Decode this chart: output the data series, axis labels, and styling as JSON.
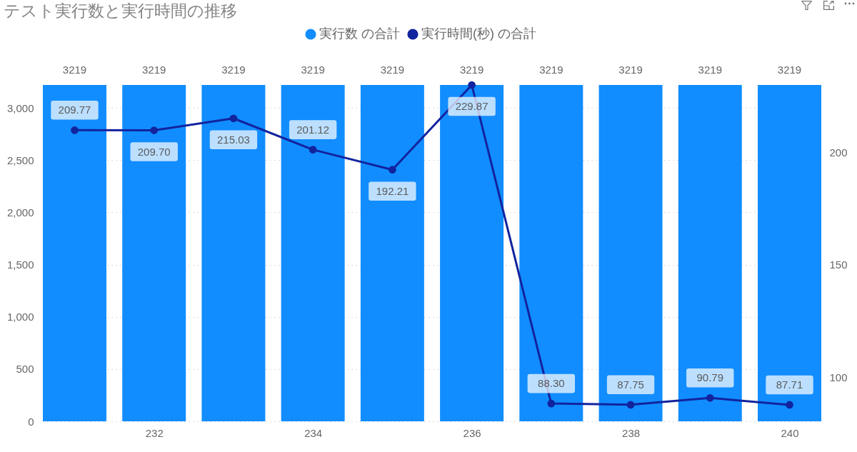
{
  "chart_data": {
    "type": "bar",
    "title": "テスト実行数と実行時間の推移",
    "x": [
      231,
      232,
      233,
      234,
      235,
      236,
      237,
      238,
      239,
      240
    ],
    "xlim": [
      230.6,
      240.4
    ],
    "xticks": [
      232,
      234,
      236,
      238,
      240
    ],
    "ylim": [
      0,
      3219
    ],
    "yticks": [
      0,
      500,
      {
        "value": 1000,
        "label": "1,000"
      },
      {
        "value": 1500,
        "label": "1,500"
      },
      {
        "value": 2000,
        "label": "2,000"
      },
      {
        "value": 2500,
        "label": "2,500"
      },
      {
        "value": 3000,
        "label": "3,000"
      }
    ],
    "y2lim": [
      80.4,
      229.87
    ],
    "y2ticks": [
      100,
      150,
      200
    ],
    "series": [
      {
        "name": "実行数 の合計",
        "color": "#118dff",
        "values": [
          3219,
          3219,
          3219,
          3219,
          3219,
          3219,
          3219,
          3219,
          3219,
          3219
        ],
        "value_labels": [
          "3219",
          "3219",
          "3219",
          "3219",
          "3219",
          "3219",
          "3219",
          "3219",
          "3219",
          "3219"
        ]
      },
      {
        "name": "実行時間(秒) の合計",
        "type": "line",
        "axis": "y2",
        "color": "#12239e",
        "values": [
          209.77,
          209.7,
          215.03,
          201.12,
          192.21,
          229.87,
          88.3,
          87.75,
          90.79,
          87.71
        ],
        "value_labels": [
          "209.77",
          "209.70",
          "215.03",
          "201.12",
          "192.21",
          "229.87",
          "88.30",
          "87.75",
          "90.79",
          "87.71"
        ]
      }
    ],
    "grid": "y",
    "legend": "top",
    "marker": "circle",
    "line_style": "solid"
  }
}
